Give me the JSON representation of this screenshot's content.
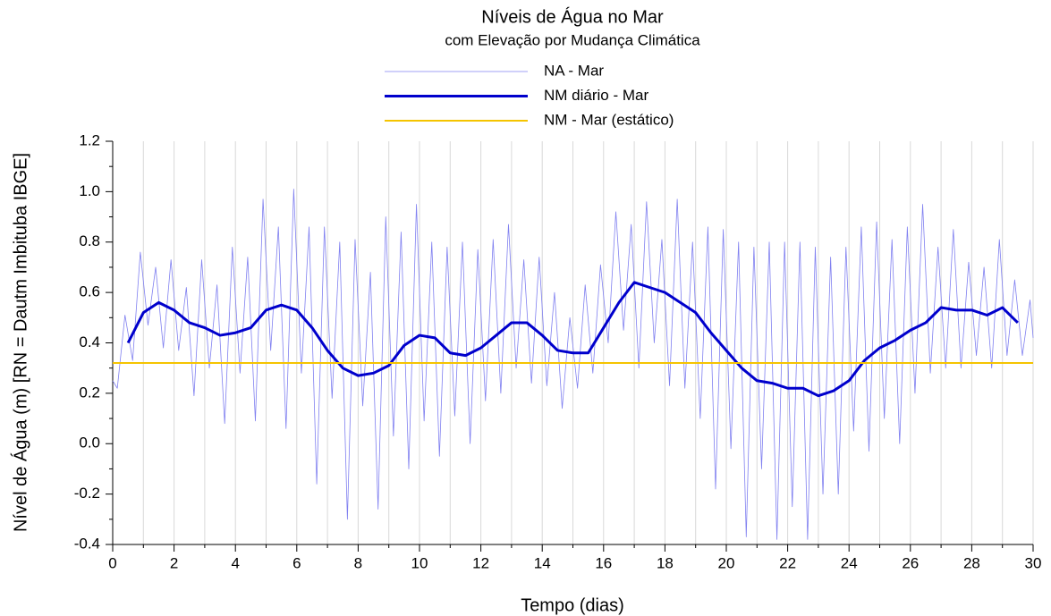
{
  "chart_data": {
    "type": "line",
    "title": "Níveis de Água no Mar",
    "subtitle": "com Elevação por Mudança Climática",
    "xlabel": "Tempo (dias)",
    "ylabel": "Nível de Água (m) [RN =  Dautm Imbituba IBGE]",
    "xlim": [
      0,
      30
    ],
    "ylim": [
      -0.4,
      1.2
    ],
    "xticks": [
      0,
      2,
      4,
      6,
      8,
      10,
      12,
      14,
      16,
      18,
      20,
      22,
      24,
      26,
      28,
      30
    ],
    "x_minor_ticks": [
      1,
      3,
      5,
      7,
      9,
      11,
      13,
      15,
      17,
      19,
      21,
      23,
      25,
      27,
      29
    ],
    "yticks": [
      -0.4,
      -0.2,
      {
        "value": 0,
        "label": "0.0"
      },
      0.2,
      0.4,
      0.6,
      0.8,
      {
        "value": 1,
        "label": "1.0"
      },
      1.2
    ],
    "y_minor_ticks": [
      -0.3,
      -0.1,
      0.1,
      0.3,
      0.5,
      0.7,
      0.9,
      1.1
    ],
    "grid": true,
    "series": [
      {
        "name": "NA - Mar",
        "color": "#8080f0",
        "width": 0.8,
        "x": [
          0,
          0.15,
          0.4,
          0.65,
          0.9,
          1.15,
          1.4,
          1.65,
          1.9,
          2.15,
          2.4,
          2.65,
          2.9,
          3.15,
          3.4,
          3.65,
          3.9,
          4.15,
          4.4,
          4.65,
          4.9,
          5.15,
          5.4,
          5.65,
          5.9,
          6.15,
          6.4,
          6.65,
          6.9,
          7.15,
          7.4,
          7.65,
          7.9,
          8.15,
          8.4,
          8.65,
          8.9,
          9.15,
          9.4,
          9.65,
          9.9,
          10.15,
          10.4,
          10.65,
          10.9,
          11.15,
          11.4,
          11.65,
          11.9,
          12.15,
          12.4,
          12.65,
          12.9,
          13.15,
          13.4,
          13.65,
          13.9,
          14.15,
          14.4,
          14.65,
          14.9,
          15.15,
          15.4,
          15.65,
          15.9,
          16.15,
          16.4,
          16.65,
          16.9,
          17.15,
          17.4,
          17.65,
          17.9,
          18.15,
          18.4,
          18.65,
          18.9,
          19.15,
          19.4,
          19.65,
          19.9,
          20.15,
          20.4,
          20.65,
          20.9,
          21.15,
          21.4,
          21.65,
          21.9,
          22.15,
          22.4,
          22.65,
          22.9,
          23.15,
          23.4,
          23.65,
          23.9,
          24.15,
          24.4,
          24.65,
          24.9,
          25.15,
          25.4,
          25.65,
          25.9,
          26.15,
          26.4,
          26.65,
          26.9,
          27.15,
          27.4,
          27.65,
          27.9,
          28.15,
          28.4,
          28.65,
          28.9,
          29.15,
          29.4,
          29.65,
          29.9,
          30
        ],
        "values": [
          0.25,
          0.22,
          0.51,
          0.33,
          0.76,
          0.47,
          0.7,
          0.38,
          0.73,
          0.37,
          0.62,
          0.19,
          0.73,
          0.3,
          0.63,
          0.08,
          0.78,
          0.28,
          0.74,
          0.09,
          0.97,
          0.37,
          0.86,
          0.06,
          1.01,
          0.28,
          0.86,
          -0.16,
          0.86,
          0.18,
          0.8,
          -0.3,
          0.81,
          0.15,
          0.68,
          -0.26,
          0.9,
          0.03,
          0.84,
          -0.1,
          0.95,
          0.09,
          0.8,
          -0.05,
          0.78,
          0.11,
          0.8,
          0.0,
          0.77,
          0.17,
          0.81,
          0.2,
          0.87,
          0.3,
          0.73,
          0.24,
          0.74,
          0.23,
          0.6,
          0.14,
          0.5,
          0.22,
          0.63,
          0.28,
          0.71,
          0.4,
          0.92,
          0.45,
          0.87,
          0.3,
          0.96,
          0.4,
          0.81,
          0.23,
          0.97,
          0.22,
          0.8,
          0.1,
          0.86,
          -0.18,
          0.85,
          -0.02,
          0.8,
          -0.37,
          0.78,
          -0.1,
          0.8,
          -0.38,
          0.8,
          -0.25,
          0.8,
          -0.38,
          0.78,
          -0.2,
          0.74,
          -0.2,
          0.78,
          0.05,
          0.86,
          -0.03,
          0.88,
          0.1,
          0.81,
          0.0,
          0.86,
          0.2,
          0.95,
          0.28,
          0.78,
          0.3,
          0.85,
          0.3,
          0.72,
          0.35,
          0.7,
          0.3,
          0.81,
          0.35,
          0.65,
          0.35,
          0.57,
          0.42
        ]
      },
      {
        "name": "NM diário - Mar",
        "color": "#0000cc",
        "width": 3,
        "x": [
          0.5,
          1,
          1.5,
          2,
          2.5,
          3,
          3.5,
          4,
          4.5,
          5,
          5.5,
          6,
          6.5,
          7,
          7.5,
          8,
          8.5,
          9,
          9.5,
          10,
          10.5,
          11,
          11.5,
          12,
          12.5,
          13,
          13.5,
          14,
          14.5,
          15,
          15.5,
          16,
          16.5,
          17,
          17.5,
          18,
          18.5,
          19,
          19.5,
          20,
          20.5,
          21,
          21.5,
          22,
          22.5,
          23,
          23.5,
          24,
          24.5,
          25,
          25.5,
          26,
          26.5,
          27,
          27.5,
          28,
          28.5,
          29,
          29.5
        ],
        "values": [
          0.4,
          0.52,
          0.56,
          0.53,
          0.48,
          0.46,
          0.43,
          0.44,
          0.46,
          0.53,
          0.55,
          0.53,
          0.46,
          0.37,
          0.3,
          0.27,
          0.28,
          0.31,
          0.39,
          0.43,
          0.42,
          0.36,
          0.35,
          0.38,
          0.43,
          0.48,
          0.48,
          0.43,
          0.37,
          0.36,
          0.36,
          0.46,
          0.56,
          0.64,
          0.62,
          0.6,
          0.56,
          0.52,
          0.44,
          0.37,
          0.3,
          0.25,
          0.24,
          0.22,
          0.22,
          0.19,
          0.21,
          0.25,
          0.33,
          0.38,
          0.41,
          0.45,
          0.48,
          0.54,
          0.53,
          0.53,
          0.51,
          0.54,
          0.48
        ]
      },
      {
        "name": "NM - Mar (estático)",
        "color": "#f5c400",
        "width": 2,
        "x": [
          0,
          30
        ],
        "values": [
          0.32,
          0.32
        ]
      }
    ]
  }
}
